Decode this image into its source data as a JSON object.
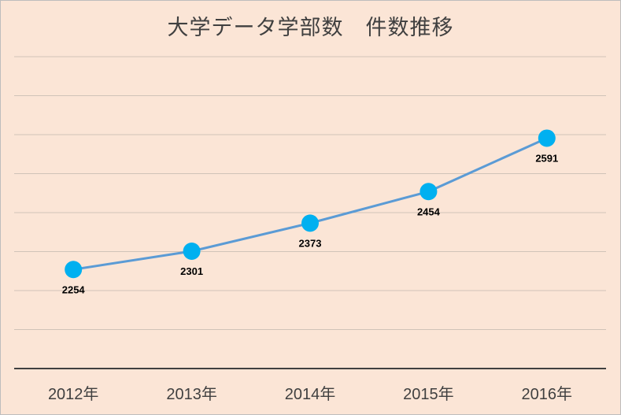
{
  "chart_data": {
    "type": "line",
    "title": "大学データ学部数　件数推移",
    "xlabel": "",
    "ylabel": "",
    "categories": [
      "2012年",
      "2013年",
      "2014年",
      "2015年",
      "2016年"
    ],
    "series": [
      {
        "values": [
          2254,
          2301,
          2373,
          2454,
          2591
        ]
      }
    ],
    "ylim": [
      2000,
      2800
    ],
    "y_tick_step": 100,
    "y_tick_labels_visible": false,
    "grid": true,
    "legend": "none",
    "data_labels": "below",
    "colors": {
      "background": "#fbe5d6",
      "line": "#5b9bd5",
      "marker": "#00b0f0",
      "grid": "#d0c3b8"
    }
  }
}
